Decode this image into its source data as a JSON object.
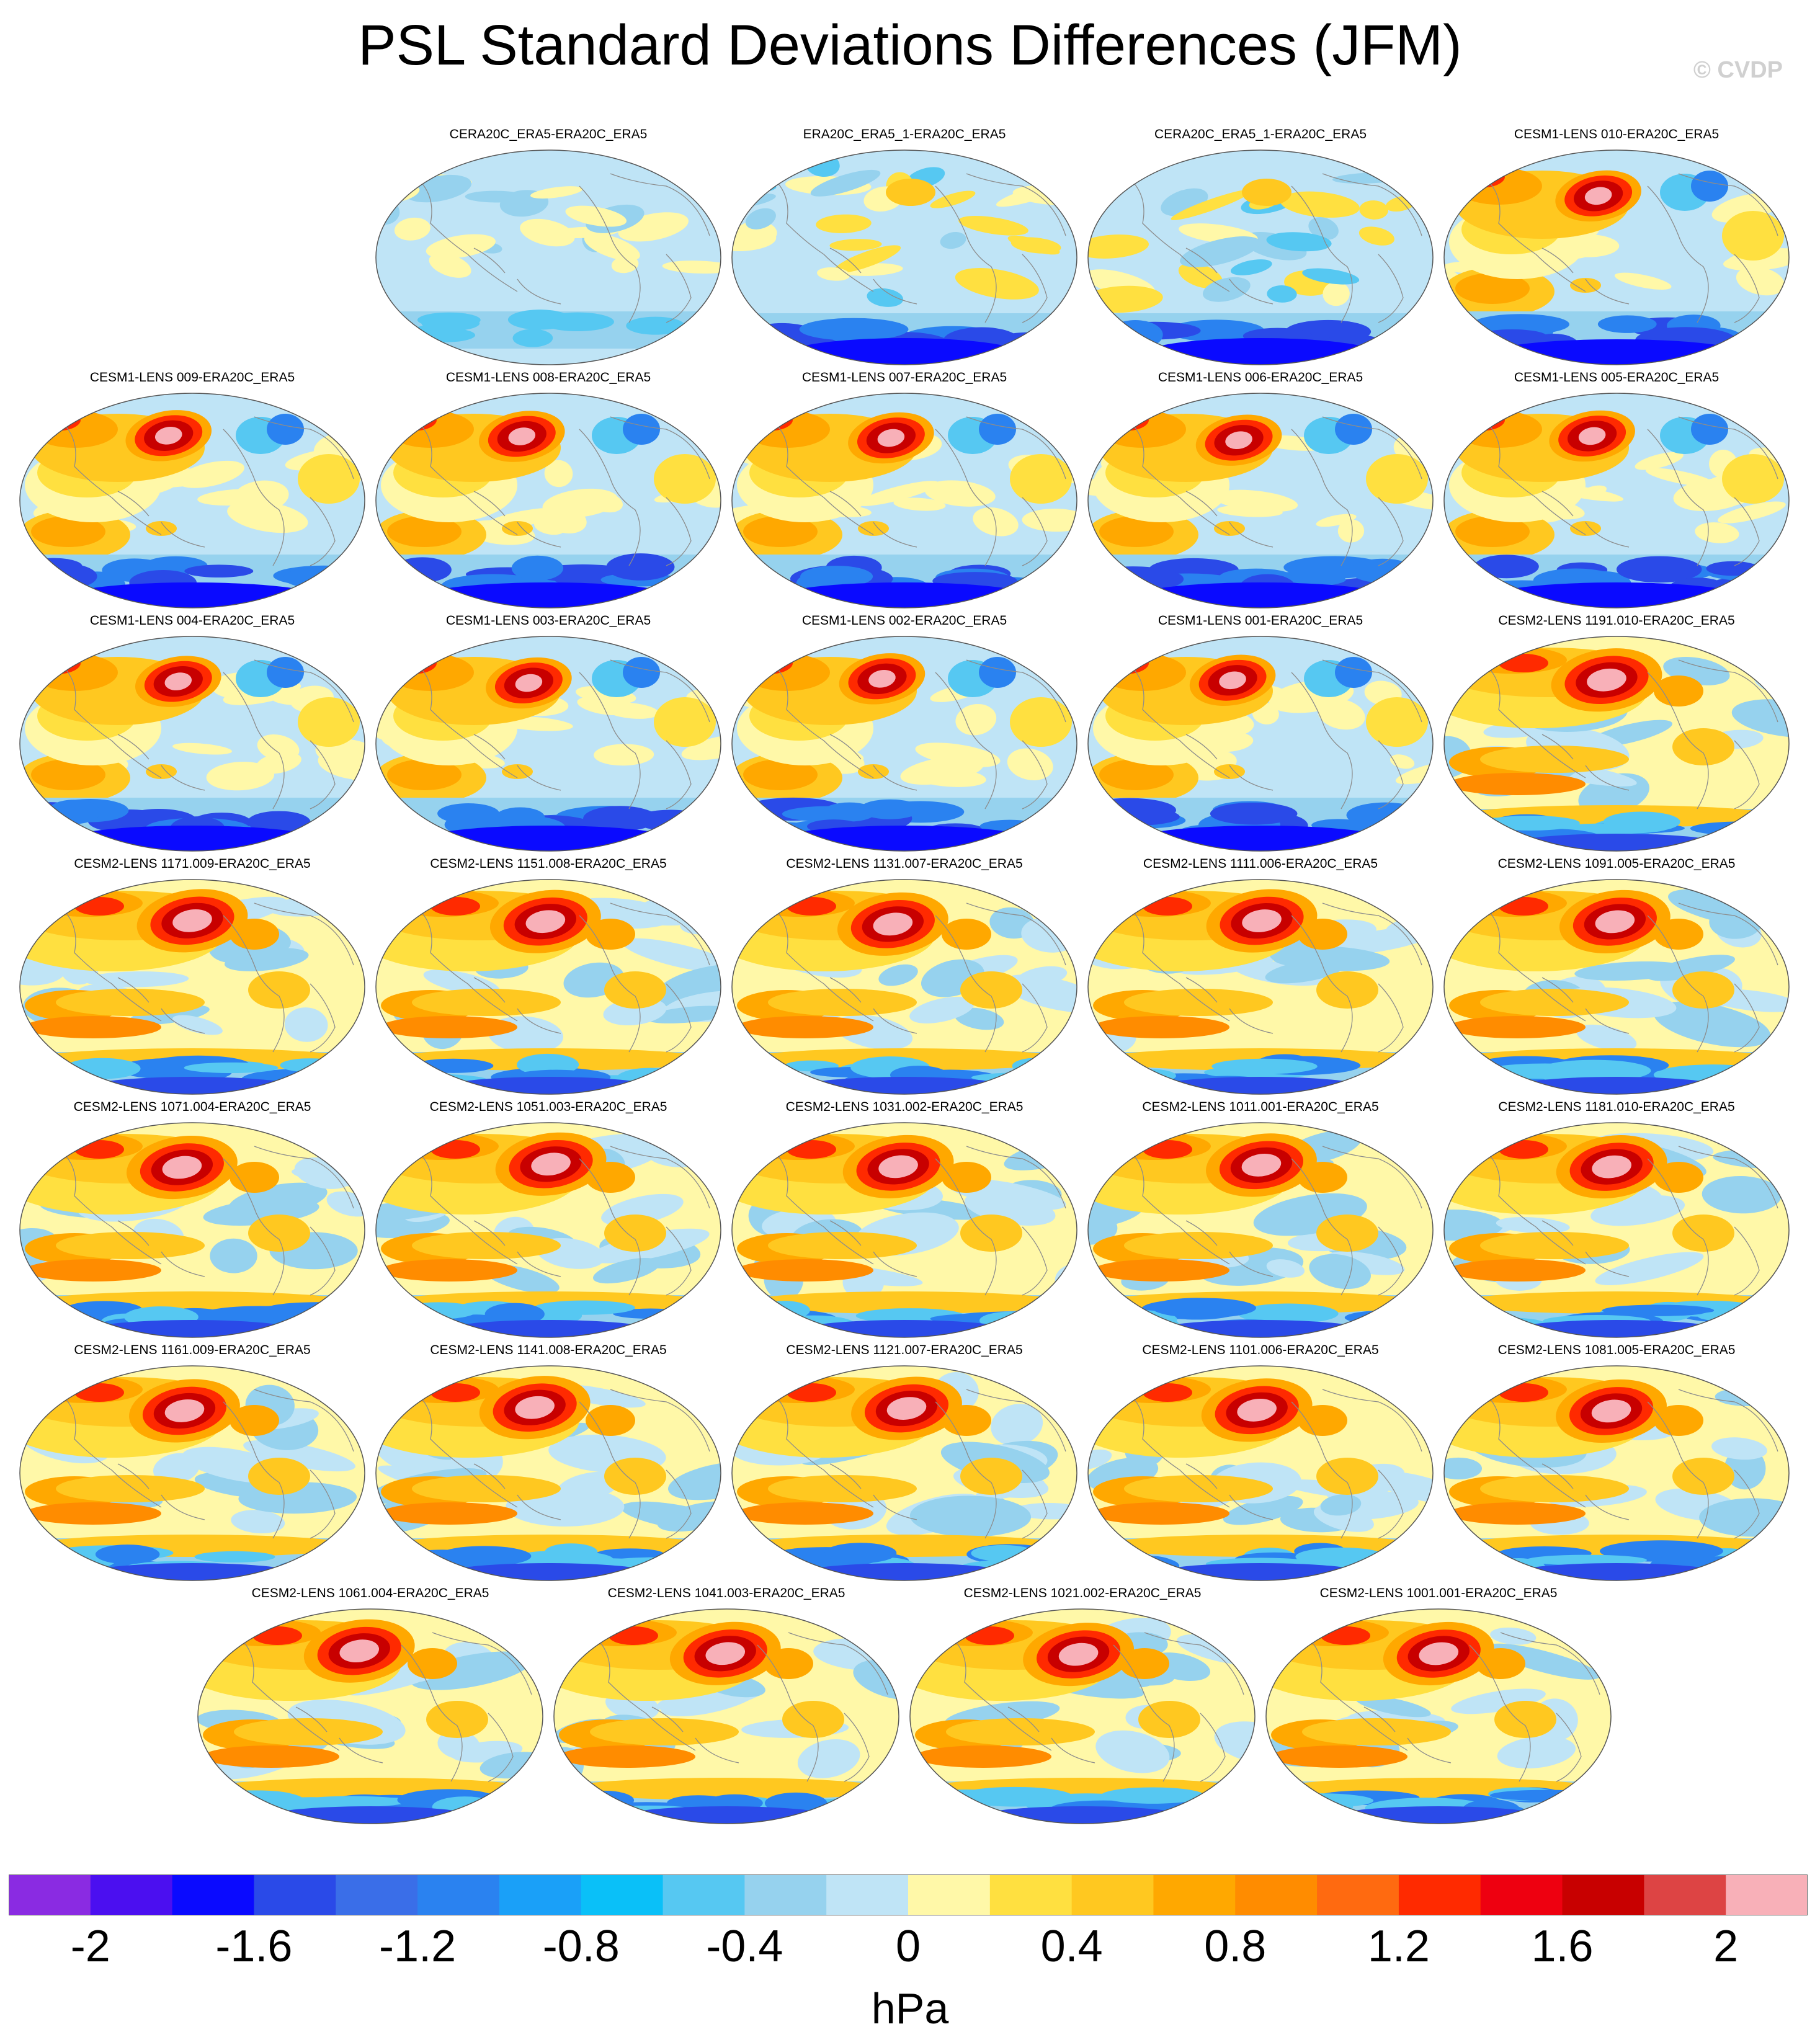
{
  "figure": {
    "title": "PSL Standard Deviations Differences (JFM)",
    "watermark": "© CVDP"
  },
  "panels": [
    {
      "label": "CERA20C_ERA5-ERA20C_ERA5",
      "style": "cool",
      "seed": 3
    },
    {
      "label": "ERA20C_ERA5_1-ERA20C_ERA5",
      "style": "mixed",
      "seed": 7
    },
    {
      "label": "CERA20C_ERA5_1-ERA20C_ERA5",
      "style": "mixed",
      "seed": 11
    },
    {
      "label": "CESM1-LENS 010-ERA20C_ERA5",
      "style": "lens1",
      "seed": 13
    },
    {
      "label": "CESM1-LENS 009-ERA20C_ERA5",
      "style": "lens1",
      "seed": 17
    },
    {
      "label": "CESM1-LENS 008-ERA20C_ERA5",
      "style": "lens1",
      "seed": 19
    },
    {
      "label": "CESM1-LENS 007-ERA20C_ERA5",
      "style": "lens1",
      "seed": 23
    },
    {
      "label": "CESM1-LENS 006-ERA20C_ERA5",
      "style": "lens1",
      "seed": 29
    },
    {
      "label": "CESM1-LENS 005-ERA20C_ERA5",
      "style": "lens1",
      "seed": 31
    },
    {
      "label": "CESM1-LENS 004-ERA20C_ERA5",
      "style": "lens1",
      "seed": 37
    },
    {
      "label": "CESM1-LENS 003-ERA20C_ERA5",
      "style": "lens1",
      "seed": 41
    },
    {
      "label": "CESM1-LENS 002-ERA20C_ERA5",
      "style": "lens1",
      "seed": 43
    },
    {
      "label": "CESM1-LENS 001-ERA20C_ERA5",
      "style": "lens1",
      "seed": 47
    },
    {
      "label": "CESM2-LENS 1191.010-ERA20C_ERA5",
      "style": "lens2",
      "seed": 53
    },
    {
      "label": "CESM2-LENS 1171.009-ERA20C_ERA5",
      "style": "lens2",
      "seed": 59
    },
    {
      "label": "CESM2-LENS 1151.008-ERA20C_ERA5",
      "style": "lens2",
      "seed": 61
    },
    {
      "label": "CESM2-LENS 1131.007-ERA20C_ERA5",
      "style": "lens2",
      "seed": 67
    },
    {
      "label": "CESM2-LENS 1111.006-ERA20C_ERA5",
      "style": "lens2",
      "seed": 71
    },
    {
      "label": "CESM2-LENS 1091.005-ERA20C_ERA5",
      "style": "lens2",
      "seed": 73
    },
    {
      "label": "CESM2-LENS 1071.004-ERA20C_ERA5",
      "style": "lens2",
      "seed": 79
    },
    {
      "label": "CESM2-LENS 1051.003-ERA20C_ERA5",
      "style": "lens2",
      "seed": 83
    },
    {
      "label": "CESM2-LENS 1031.002-ERA20C_ERA5",
      "style": "lens2",
      "seed": 89
    },
    {
      "label": "CESM2-LENS 1011.001-ERA20C_ERA5",
      "style": "lens2",
      "seed": 97
    },
    {
      "label": "CESM2-LENS 1181.010-ERA20C_ERA5",
      "style": "lens2",
      "seed": 101
    },
    {
      "label": "CESM2-LENS 1161.009-ERA20C_ERA5",
      "style": "lens2",
      "seed": 103
    },
    {
      "label": "CESM2-LENS 1141.008-ERA20C_ERA5",
      "style": "lens2",
      "seed": 107
    },
    {
      "label": "CESM2-LENS 1121.007-ERA20C_ERA5",
      "style": "lens2",
      "seed": 109
    },
    {
      "label": "CESM2-LENS 1101.006-ERA20C_ERA5",
      "style": "lens2",
      "seed": 113
    },
    {
      "label": "CESM2-LENS 1081.005-ERA20C_ERA5",
      "style": "lens2",
      "seed": 127
    },
    {
      "label": "CESM2-LENS 1061.004-ERA20C_ERA5",
      "style": "lens2",
      "seed": 131
    },
    {
      "label": "CESM2-LENS 1041.003-ERA20C_ERA5",
      "style": "lens2",
      "seed": 137
    },
    {
      "label": "CESM2-LENS 1021.002-ERA20C_ERA5",
      "style": "lens2",
      "seed": 139
    },
    {
      "label": "CESM2-LENS 1001.001-ERA20C_ERA5",
      "style": "lens2",
      "seed": 149
    }
  ],
  "colorbar": {
    "units": "hPa",
    "levels": [
      -2.2,
      -2.0,
      -1.8,
      -1.6,
      -1.4,
      -1.2,
      -1.0,
      -0.8,
      -0.6,
      -0.4,
      -0.2,
      0,
      0.2,
      0.4,
      0.6,
      0.8,
      1.0,
      1.2,
      1.4,
      1.6,
      1.8,
      2.0,
      2.2
    ],
    "colors": [
      "#8a2be2",
      "#4b0ff0",
      "#0a0aff",
      "#2a4ae8",
      "#3a6ee8",
      "#2a82f0",
      "#1aa0f8",
      "#0ac0f8",
      "#56c8f2",
      "#96d2ee",
      "#bfe4f6",
      "#fff8a8",
      "#ffe040",
      "#ffc820",
      "#ffa800",
      "#ff8c00",
      "#ff6a10",
      "#ff2a00",
      "#ee0010",
      "#c80000",
      "#dd4444",
      "#f8b0b8"
    ],
    "tick_labels": [
      "-2",
      "-1.6",
      "-1.2",
      "-0.8",
      "-0.4",
      "0",
      "0.4",
      "0.8",
      "1.2",
      "1.6",
      "2"
    ]
  }
}
